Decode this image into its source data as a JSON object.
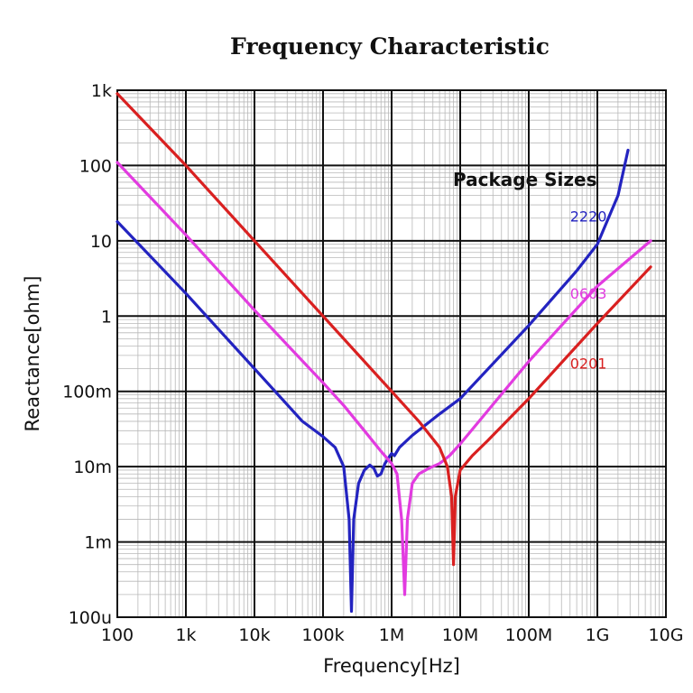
{
  "chart_data": {
    "type": "line",
    "title": "Frequency Characteristic",
    "xlabel": "Frequency[Hz]",
    "ylabel": "Reactance[ohm]",
    "x_scale": "log",
    "y_scale": "log",
    "xlim": [
      100,
      10000000000
    ],
    "ylim": [
      0.0001,
      1000
    ],
    "x_ticks": [
      {
        "value": 100,
        "label": "100"
      },
      {
        "value": 1000,
        "label": "1k"
      },
      {
        "value": 10000,
        "label": "10k"
      },
      {
        "value": 100000,
        "label": "100k"
      },
      {
        "value": 1000000,
        "label": "1M"
      },
      {
        "value": 10000000,
        "label": "10M"
      },
      {
        "value": 100000000,
        "label": "100M"
      },
      {
        "value": 1000000000,
        "label": "1G"
      },
      {
        "value": 10000000000,
        "label": "10G"
      }
    ],
    "y_ticks": [
      {
        "value": 0.0001,
        "label": "100u"
      },
      {
        "value": 0.001,
        "label": "1m"
      },
      {
        "value": 0.01,
        "label": "10m"
      },
      {
        "value": 0.1,
        "label": "100m"
      },
      {
        "value": 1,
        "label": "1"
      },
      {
        "value": 10,
        "label": "10"
      },
      {
        "value": 100,
        "label": "100"
      },
      {
        "value": 1000,
        "label": "1k"
      }
    ],
    "grid": true,
    "legend_title": "Package Sizes",
    "series": [
      {
        "name": "2220",
        "color": "#2323c0",
        "points": [
          [
            100,
            18
          ],
          [
            1000,
            2
          ],
          [
            10000,
            0.2
          ],
          [
            50000,
            0.04
          ],
          [
            100000,
            0.025
          ],
          [
            150000,
            0.018
          ],
          [
            200000,
            0.01
          ],
          [
            240000,
            0.002
          ],
          [
            260000,
            0.00012
          ],
          [
            280000,
            0.002
          ],
          [
            330000,
            0.006
          ],
          [
            400000,
            0.009
          ],
          [
            480000,
            0.0105
          ],
          [
            550000,
            0.0095
          ],
          [
            620000,
            0.0075
          ],
          [
            700000,
            0.008
          ],
          [
            800000,
            0.011
          ],
          [
            900000,
            0.013
          ],
          [
            1000000,
            0.015
          ],
          [
            1100000,
            0.014
          ],
          [
            1300000,
            0.018
          ],
          [
            2000000,
            0.026
          ],
          [
            5000000,
            0.05
          ],
          [
            10000000,
            0.08
          ],
          [
            100000000,
            0.75
          ],
          [
            500000000,
            4
          ],
          [
            1000000000,
            9
          ],
          [
            2000000000,
            40
          ],
          [
            2800000000,
            160
          ]
        ]
      },
      {
        "name": "0603",
        "color": "#e23be0",
        "points": [
          [
            100,
            110
          ],
          [
            1000,
            12
          ],
          [
            10000,
            1.2
          ],
          [
            100000,
            0.13
          ],
          [
            200000,
            0.065
          ],
          [
            400000,
            0.03
          ],
          [
            700000,
            0.016
          ],
          [
            1000000,
            0.011
          ],
          [
            1200000,
            0.008
          ],
          [
            1400000,
            0.002
          ],
          [
            1550000,
            0.0002
          ],
          [
            1700000,
            0.002
          ],
          [
            2000000,
            0.006
          ],
          [
            2500000,
            0.008
          ],
          [
            3500000,
            0.0095
          ],
          [
            5000000,
            0.011
          ],
          [
            7000000,
            0.014
          ],
          [
            10000000,
            0.02
          ],
          [
            100000000,
            0.25
          ],
          [
            1000000000,
            2.5
          ],
          [
            6000000000,
            10
          ]
        ]
      },
      {
        "name": "0201",
        "color": "#d92020",
        "points": [
          [
            100,
            900
          ],
          [
            1000,
            100
          ],
          [
            10000,
            10
          ],
          [
            100000,
            1
          ],
          [
            1000000,
            0.1
          ],
          [
            2500000,
            0.04
          ],
          [
            5000000,
            0.018
          ],
          [
            6500000,
            0.01
          ],
          [
            7500000,
            0.004
          ],
          [
            8000000,
            0.0005
          ],
          [
            8500000,
            0.004
          ],
          [
            10000000,
            0.009
          ],
          [
            15000000,
            0.014
          ],
          [
            25000000,
            0.022
          ],
          [
            100000000,
            0.08
          ],
          [
            1000000000,
            0.8
          ],
          [
            6000000000,
            4.5
          ]
        ]
      }
    ],
    "series_labels": [
      {
        "name": "2220",
        "x": 400000000,
        "y": 18
      },
      {
        "name": "0603",
        "x": 400000000,
        "y": 1.7
      },
      {
        "name": "0201",
        "x": 400000000,
        "y": 0.2
      }
    ]
  }
}
